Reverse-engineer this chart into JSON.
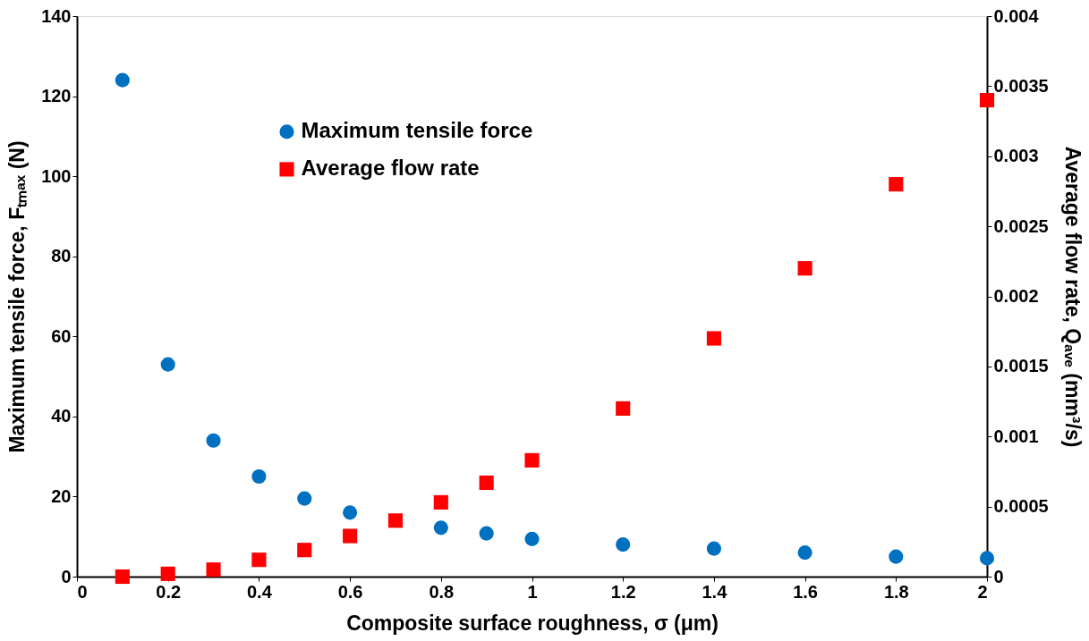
{
  "chart_data": {
    "type": "scatter",
    "xlabel": "Composite surface roughness, σ (μm)",
    "ylabel": "Maximum tensile force, Fₜₘₐₓ (N)",
    "y2label": "Average flow rate, Qₐᵥₑ (mm³/s)",
    "xlim": [
      0,
      2
    ],
    "xticks": [
      0,
      0.2,
      0.4,
      0.6,
      0.8,
      1,
      1.2,
      1.4,
      1.6,
      1.8,
      2
    ],
    "ylim": [
      0,
      140
    ],
    "yticks": [
      0,
      20,
      40,
      60,
      80,
      100,
      120,
      140
    ],
    "y2lim": [
      0,
      0.004
    ],
    "y2ticks": [
      0,
      0.0005,
      0.001,
      0.0015,
      0.002,
      0.0025,
      0.003,
      0.0035,
      0.004
    ],
    "grid": false,
    "legend": "top",
    "series": [
      {
        "name": "Maximum tensile force",
        "color": "#0070c0",
        "marker": "circle",
        "x": [
          0.1,
          0.2,
          0.3,
          0.4,
          0.5,
          0.6,
          0.8,
          0.9,
          1,
          1.2,
          1.4,
          1.6,
          1.8,
          2
        ],
        "values": [
          124,
          53,
          34,
          25,
          19.5,
          16,
          12.2,
          10.8,
          9.4,
          8,
          7,
          6,
          5,
          4.6
        ]
      },
      {
        "name": "Average flow rate",
        "color": "#ff0000",
        "marker": "square",
        "axis": "y2",
        "x": [
          0.1,
          0.2,
          0.3,
          0.4,
          0.5,
          0.6,
          0.7,
          0.8,
          0.9,
          1,
          1.2,
          1.4,
          1.6,
          1.8,
          2
        ],
        "values": [
          0,
          2e-05,
          5e-05,
          0.00012,
          0.00019,
          0.00029,
          0.0004,
          0.00053,
          0.00067,
          0.00083,
          0.0012,
          0.0017,
          0.0022,
          0.0028,
          0.0034
        ]
      }
    ]
  }
}
